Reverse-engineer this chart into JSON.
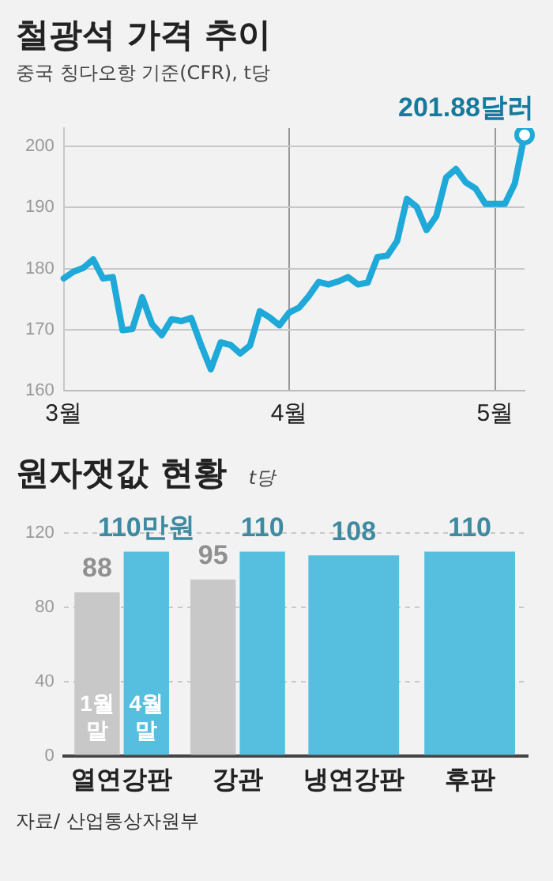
{
  "chart_data": [
    {
      "type": "line",
      "title": "철광석 가격 추이",
      "subtitle": "중국 칭다오항 기준(CFR), t당",
      "categories": [
        "3월",
        null,
        null,
        null,
        null,
        null,
        null,
        null,
        null,
        null,
        null,
        null,
        null,
        null,
        null,
        null,
        null,
        null,
        null,
        null,
        null,
        null,
        null,
        "4월",
        null,
        null,
        null,
        null,
        null,
        null,
        null,
        null,
        null,
        null,
        null,
        null,
        null,
        null,
        null,
        null,
        null,
        null,
        null,
        null,
        "5월",
        null,
        null,
        null
      ],
      "series": [
        {
          "color": "#1ea9d8",
          "values": [
            178.4,
            179.5,
            180.1,
            181.5,
            178.4,
            178.6,
            169.9,
            170.1,
            175.3,
            170.9,
            169.1,
            171.7,
            171.4,
            171.9,
            167.5,
            163.5,
            167.9,
            167.5,
            166.1,
            167.4,
            173.0,
            172.0,
            170.7,
            172.8,
            173.6,
            175.5,
            177.8,
            177.4,
            177.9,
            178.6,
            177.4,
            177.7,
            181.9,
            182.1,
            184.5,
            191.4,
            190.1,
            186.3,
            188.6,
            194.9,
            196.3,
            194.1,
            193.1,
            190.6,
            190.6,
            190.6,
            193.9,
            201.88
          ],
          "value_labels": [
            null,
            null,
            null,
            null,
            null,
            null,
            null,
            null,
            null,
            null,
            null,
            null,
            null,
            null,
            null,
            null,
            null,
            null,
            null,
            null,
            null,
            null,
            null,
            null,
            null,
            null,
            null,
            null,
            null,
            null,
            null,
            null,
            null,
            null,
            null,
            null,
            null,
            null,
            null,
            null,
            null,
            null,
            null,
            null,
            null,
            null,
            null,
            "201.88달러"
          ]
        }
      ],
      "ylim": [
        160,
        203
      ],
      "yticks": [
        160,
        170,
        180,
        190,
        200
      ],
      "grid": true,
      "legend": false,
      "marker": "none",
      "line_style": "solid"
    },
    {
      "type": "bar",
      "title": "원자잿값 현황",
      "subtitle": "t당",
      "categories": [
        "열연강판",
        "강관",
        "냉연강판",
        "후판"
      ],
      "series": [
        {
          "name": "1월 말",
          "color": "#c8c8c8",
          "values": [
            88,
            95,
            null,
            null
          ],
          "value_labels": [
            "88",
            "95",
            null,
            null
          ]
        },
        {
          "name": "4월 말",
          "color": "#56bfe0",
          "values": [
            110,
            110,
            108,
            110
          ],
          "value_labels": [
            "110만원",
            "110",
            "108",
            "110"
          ]
        }
      ],
      "ylim": [
        0,
        120
      ],
      "yticks": [
        0,
        40,
        80,
        120
      ],
      "grid": "y",
      "legend": false,
      "annotations": [
        "자료/ 산업통상자원부"
      ]
    }
  ]
}
